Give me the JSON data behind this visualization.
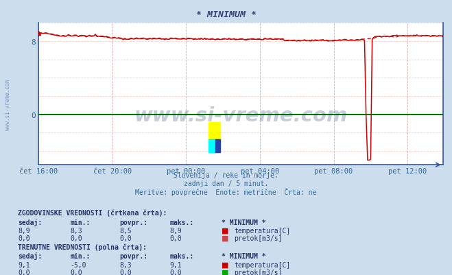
{
  "title": "* MINIMUM *",
  "bg_color": "#ccdded",
  "plot_bg_color": "#ffffff",
  "grid_color_h": "#ffcccc",
  "grid_color_v": "#ddaaaa",
  "x_label_color": "#336699",
  "y_label_color": "#336699",
  "subtitle_lines": [
    "Slovenija / reke in morje.",
    "zadnji dan / 5 minut.",
    "Meritve: povprečne  Enote: metrične  Črta: ne"
  ],
  "x_ticks_labels": [
    "čet 16:00",
    "čet 20:00",
    "pet 00:00",
    "pet 04:00",
    "pet 08:00",
    "pet 12:00"
  ],
  "x_ticks_pos": [
    0,
    48,
    96,
    144,
    192,
    240
  ],
  "ylim": [
    -5.5,
    10.0
  ],
  "xlim": [
    0,
    263
  ],
  "temp_solid_color": "#cc0000",
  "temp_dashed_color": "#cc0000",
  "flow_solid_color": "#007700",
  "flow_dashed_color": "#007700",
  "watermark_text": "www.si-vreme.com",
  "watermark_color": "#1a3a6a",
  "watermark_alpha": 0.25,
  "axis_color": "#3355aa",
  "title_color": "#334477",
  "subtitle_color": "#336699",
  "table_color": "#223366",
  "table_header1": "ZGODOVINSKE VREDNOSTI (črtkana črta):",
  "table_header2": "TRENUTNE VREDNOSTI (polna črta):",
  "col_headers": [
    "sedaj:",
    "min.:",
    "povpr.:",
    "maks.:",
    "* MINIMUM *"
  ],
  "hist_temp": [
    8.9,
    8.3,
    8.5,
    8.9
  ],
  "hist_flow": [
    0.0,
    0.0,
    0.0,
    0.0
  ],
  "curr_temp": [
    9.1,
    -5.0,
    8.3,
    9.1
  ],
  "curr_flow": [
    0.0,
    0.0,
    0.0,
    0.0
  ],
  "legend_temp": "temperatura[C]",
  "legend_flow": "pretok[m3/s]",
  "temp_icon_color": "#cc0000",
  "flow_hist_icon_color": "#cc4444",
  "flow_curr_icon_color": "#00aa00"
}
